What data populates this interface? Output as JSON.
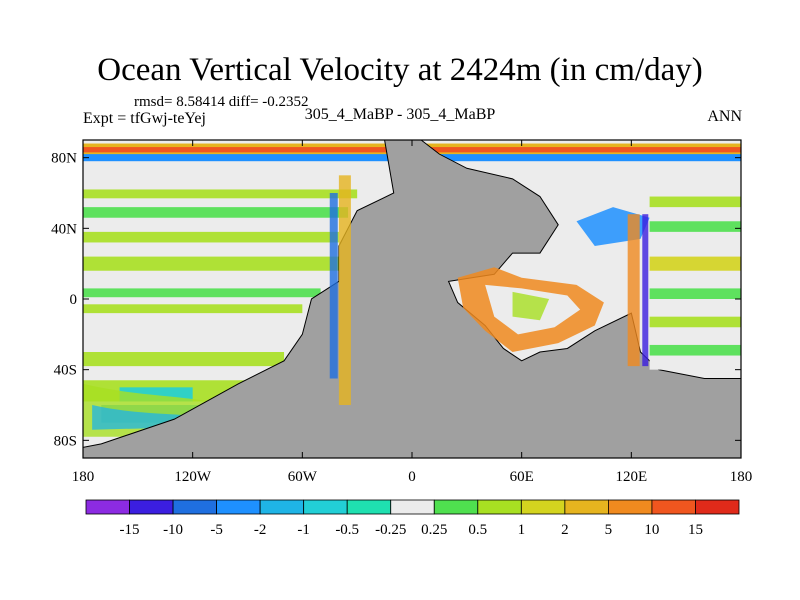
{
  "header": {
    "title": "Ocean Vertical Velocity at 2424m (in cm/day)",
    "stats": "rmsd= 8.58414 diff= -0.2352",
    "expt": "Expt = tfGwj-teYej",
    "center_label": "305_4_MaBP - 305_4_MaBP",
    "season": "ANN"
  },
  "chart_data": {
    "type": "heatmap",
    "title": "Ocean Vertical Velocity at 2424m (in cm/day)",
    "x_ticks": [
      "180",
      "120W",
      "60W",
      "0",
      "60E",
      "120E",
      "180"
    ],
    "x_tick_values": [
      -180,
      -120,
      -60,
      0,
      60,
      120,
      180
    ],
    "y_ticks": [
      "80N",
      "40N",
      "0",
      "40S",
      "80S"
    ],
    "y_tick_values": [
      80,
      40,
      0,
      -40,
      -80
    ],
    "xlim": [
      -180,
      180
    ],
    "ylim": [
      -90,
      90
    ],
    "colorbar": {
      "labels": [
        "-15",
        "-10",
        "-5",
        "-2",
        "-1",
        "-0.5",
        "-0.25",
        "0.25",
        "0.5",
        "1",
        "2",
        "5",
        "10",
        "15"
      ],
      "colors": [
        "#8c2be2",
        "#3b1ee0",
        "#1f6fe0",
        "#1e90ff",
        "#1fb4e6",
        "#22cfd6",
        "#1fe0b0",
        "#ececec",
        "#4fe04f",
        "#a8e022",
        "#d4d41f",
        "#e6b41f",
        "#f08a1f",
        "#f0561f",
        "#e02a1a"
      ]
    },
    "land_color": "#a0a0a0"
  }
}
